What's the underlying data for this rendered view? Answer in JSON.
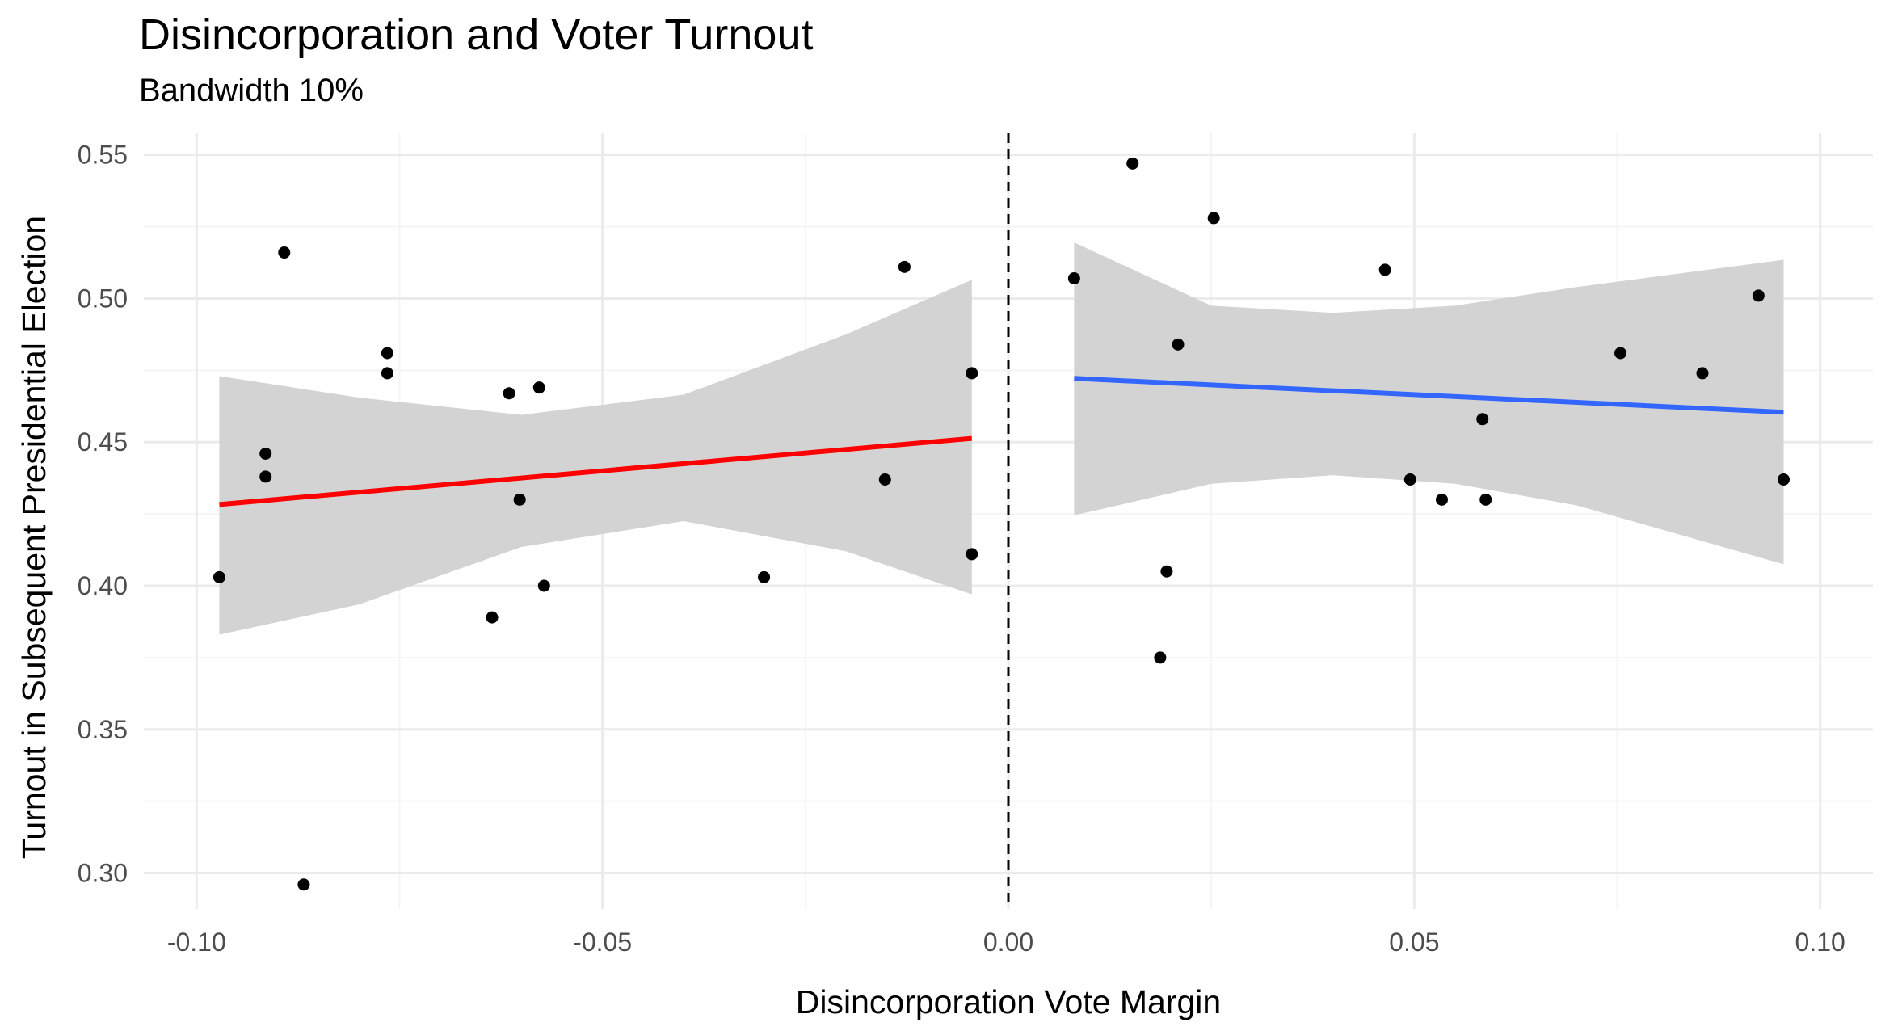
{
  "chart_data": {
    "type": "scatter",
    "title": "Disincorporation and Voter Turnout",
    "subtitle": "Bandwidth 10%",
    "xlabel": "Disincorporation Vote Margin",
    "ylabel": "Turnout in Subsequent Presidential Election",
    "xlim": [
      -0.1065,
      0.1065
    ],
    "ylim": [
      0.2875,
      0.5575
    ],
    "x_ticks": [
      -0.1,
      -0.05,
      0.0,
      0.05,
      0.1
    ],
    "x_tick_labels": [
      "-0.10",
      "-0.05",
      "0.00",
      "0.05",
      "0.10"
    ],
    "y_ticks": [
      0.3,
      0.35,
      0.4,
      0.45,
      0.5,
      0.55
    ],
    "y_tick_labels": [
      "0.30",
      "0.35",
      "0.40",
      "0.45",
      "0.50",
      "0.55"
    ],
    "grid": true,
    "cutoff": 0.0,
    "points": [
      {
        "x": -0.0972,
        "y": 0.403
      },
      {
        "x": -0.0915,
        "y": 0.446
      },
      {
        "x": -0.0915,
        "y": 0.438
      },
      {
        "x": -0.0892,
        "y": 0.516
      },
      {
        "x": -0.0868,
        "y": 0.296
      },
      {
        "x": -0.0765,
        "y": 0.481
      },
      {
        "x": -0.0765,
        "y": 0.474
      },
      {
        "x": -0.0636,
        "y": 0.389
      },
      {
        "x": -0.0615,
        "y": 0.467
      },
      {
        "x": -0.0602,
        "y": 0.43
      },
      {
        "x": -0.0578,
        "y": 0.469
      },
      {
        "x": -0.0572,
        "y": 0.4
      },
      {
        "x": -0.0301,
        "y": 0.403
      },
      {
        "x": -0.0152,
        "y": 0.437
      },
      {
        "x": -0.0128,
        "y": 0.511
      },
      {
        "x": -0.0045,
        "y": 0.474
      },
      {
        "x": -0.0045,
        "y": 0.411
      },
      {
        "x": 0.0081,
        "y": 0.507
      },
      {
        "x": 0.0153,
        "y": 0.547
      },
      {
        "x": 0.0187,
        "y": 0.375
      },
      {
        "x": 0.0195,
        "y": 0.405
      },
      {
        "x": 0.0209,
        "y": 0.484
      },
      {
        "x": 0.0253,
        "y": 0.528
      },
      {
        "x": 0.0464,
        "y": 0.51
      },
      {
        "x": 0.0495,
        "y": 0.437
      },
      {
        "x": 0.0534,
        "y": 0.43
      },
      {
        "x": 0.0584,
        "y": 0.458
      },
      {
        "x": 0.0588,
        "y": 0.43
      },
      {
        "x": 0.0754,
        "y": 0.481
      },
      {
        "x": 0.0855,
        "y": 0.474
      },
      {
        "x": 0.0924,
        "y": 0.501
      },
      {
        "x": 0.0955,
        "y": 0.437
      }
    ],
    "fits": [
      {
        "side": "left",
        "color": "#ff0000",
        "x": [
          -0.0972,
          -0.0045
        ],
        "y": [
          0.4283,
          0.4513
        ],
        "ci_x": [
          -0.0972,
          -0.08,
          -0.06,
          -0.04,
          -0.02,
          -0.0045
        ],
        "ci_upper": [
          0.473,
          0.4655,
          0.4595,
          0.4665,
          0.4875,
          0.5065
        ],
        "ci_lower": [
          0.383,
          0.3935,
          0.4135,
          0.4225,
          0.412,
          0.397
        ]
      },
      {
        "side": "right",
        "color": "#3366ff",
        "x": [
          0.0081,
          0.0955
        ],
        "y": [
          0.4722,
          0.4604
        ],
        "ci_x": [
          0.0081,
          0.025,
          0.04,
          0.055,
          0.07,
          0.0955
        ],
        "ci_upper": [
          0.5195,
          0.4975,
          0.495,
          0.4975,
          0.504,
          0.5135
        ],
        "ci_lower": [
          0.4245,
          0.4355,
          0.4385,
          0.4355,
          0.428,
          0.4075
        ]
      }
    ],
    "colors": {
      "points": "#000000",
      "ribbon": "#d3d3d3",
      "grid_major": "#ebebeb",
      "grid_minor": "#f5f5f5",
      "text": "#000000",
      "tick_text": "#4d4d4d",
      "cutoff_line": "#000000"
    }
  }
}
